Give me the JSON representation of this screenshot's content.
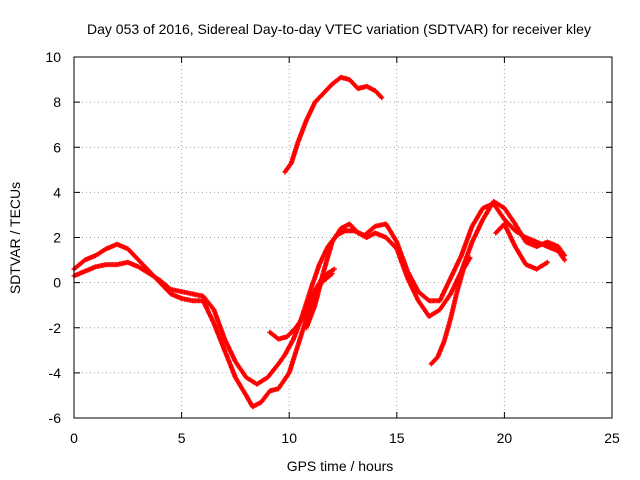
{
  "chart_data": {
    "type": "scatter",
    "title": "Day 053 of 2016, Sidereal Day-to-day VTEC variation (SDTVAR) for receiver kley",
    "xlabel": "GPS time / hours",
    "ylabel": "SDTVAR / TECUs",
    "xlim": [
      0,
      25
    ],
    "ylim": [
      -6,
      10
    ],
    "xticks": [
      "0",
      "5",
      "10",
      "15",
      "20",
      "25"
    ],
    "yticks": [
      "-6",
      "-4",
      "-2",
      "0",
      "2",
      "4",
      "6",
      "8",
      "10"
    ],
    "grid": true,
    "marker": "+",
    "color": "#ff0000",
    "series": [
      {
        "points": [
          [
            0,
            0.3
          ],
          [
            0.5,
            0.5
          ],
          [
            1,
            0.7
          ],
          [
            1.5,
            0.8
          ],
          [
            2,
            0.8
          ],
          [
            2.5,
            0.9
          ],
          [
            3,
            0.7
          ],
          [
            3.5,
            0.4
          ],
          [
            4,
            0.1
          ],
          [
            4.5,
            -0.3
          ],
          [
            5,
            -0.4
          ],
          [
            5.5,
            -0.5
          ],
          [
            6,
            -0.6
          ],
          [
            6.5,
            -1.2
          ],
          [
            7,
            -2.5
          ],
          [
            7.5,
            -3.5
          ],
          [
            8,
            -4.2
          ],
          [
            8.5,
            -4.5
          ],
          [
            9,
            -4.2
          ],
          [
            9.5,
            -3.6
          ],
          [
            9.8,
            -3.2
          ],
          [
            10.2,
            -2.5
          ],
          [
            10.6,
            -1.5
          ],
          [
            11,
            -0.3
          ],
          [
            11.4,
            0.8
          ],
          [
            11.8,
            1.6
          ],
          [
            12.2,
            2.1
          ],
          [
            12.6,
            2.3
          ],
          [
            13,
            2.3
          ],
          [
            13.5,
            2.1
          ],
          [
            14,
            2.5
          ],
          [
            14.5,
            2.6
          ],
          [
            15,
            1.8
          ],
          [
            15.5,
            0.5
          ],
          [
            16,
            -0.4
          ],
          [
            16.5,
            -0.8
          ],
          [
            17,
            -0.8
          ],
          [
            17.5,
            0.2
          ],
          [
            18,
            1.2
          ],
          [
            18.5,
            2.5
          ],
          [
            19,
            3.3
          ],
          [
            19.5,
            3.5
          ],
          [
            20,
            2.8
          ],
          [
            20.5,
            2.3
          ],
          [
            21,
            2.0
          ],
          [
            21.5,
            1.8
          ],
          [
            22,
            1.6
          ],
          [
            22.5,
            1.4
          ],
          [
            22.8,
            1.0
          ]
        ]
      },
      {
        "points": [
          [
            0,
            0.6
          ],
          [
            0.5,
            1.0
          ],
          [
            1,
            1.2
          ],
          [
            1.5,
            1.5
          ],
          [
            2,
            1.7
          ],
          [
            2.5,
            1.5
          ],
          [
            3,
            1.0
          ],
          [
            3.5,
            0.5
          ],
          [
            4,
            0.0
          ],
          [
            4.5,
            -0.5
          ],
          [
            5,
            -0.7
          ],
          [
            5.5,
            -0.8
          ],
          [
            6,
            -0.8
          ],
          [
            6.5,
            -1.8
          ],
          [
            7,
            -3.0
          ],
          [
            7.5,
            -4.2
          ],
          [
            8,
            -5.0
          ],
          [
            8.3,
            -5.5
          ],
          [
            8.7,
            -5.3
          ],
          [
            9.1,
            -4.8
          ],
          [
            9.5,
            -4.7
          ],
          [
            10,
            -4.0
          ],
          [
            10.5,
            -2.5
          ],
          [
            11,
            -1.0
          ],
          [
            11.5,
            0.0
          ],
          [
            12,
            0.4
          ]
        ]
      },
      {
        "points": [
          [
            10.8,
            -2.0
          ],
          [
            11.2,
            -1.0
          ],
          [
            11.6,
            0.5
          ],
          [
            12,
            1.8
          ],
          [
            12.4,
            2.4
          ],
          [
            12.8,
            2.6
          ],
          [
            13.2,
            2.2
          ],
          [
            13.6,
            2.0
          ],
          [
            14,
            2.2
          ],
          [
            14.5,
            2.0
          ],
          [
            15,
            1.5
          ],
          [
            15.5,
            0.2
          ],
          [
            16,
            -0.8
          ],
          [
            16.5,
            -1.5
          ],
          [
            17,
            -1.2
          ],
          [
            17.5,
            -0.5
          ],
          [
            18,
            0.5
          ],
          [
            18.5,
            1.8
          ],
          [
            19,
            2.8
          ],
          [
            19.5,
            3.6
          ],
          [
            20,
            3.3
          ],
          [
            20.5,
            2.6
          ],
          [
            21,
            1.8
          ],
          [
            21.5,
            1.6
          ],
          [
            22,
            1.8
          ],
          [
            22.5,
            1.6
          ],
          [
            22.8,
            1.2
          ]
        ]
      },
      {
        "points": [
          [
            9.8,
            4.9
          ],
          [
            10.1,
            5.3
          ],
          [
            10.4,
            6.2
          ],
          [
            10.8,
            7.2
          ],
          [
            11.2,
            8.0
          ],
          [
            11.6,
            8.4
          ],
          [
            12,
            8.8
          ],
          [
            12.4,
            9.1
          ],
          [
            12.8,
            9.0
          ],
          [
            13.2,
            8.6
          ],
          [
            13.6,
            8.7
          ],
          [
            14,
            8.5
          ],
          [
            14.3,
            8.2
          ]
        ]
      },
      {
        "points": [
          [
            9.1,
            -2.2
          ],
          [
            9.5,
            -2.5
          ],
          [
            9.9,
            -2.4
          ],
          [
            10.3,
            -2.0
          ],
          [
            10.7,
            -1.5
          ],
          [
            11.1,
            -0.5
          ],
          [
            11.6,
            0.3
          ],
          [
            12.1,
            0.6
          ]
        ]
      },
      {
        "points": [
          [
            16.6,
            -3.6
          ],
          [
            16.9,
            -3.3
          ],
          [
            17.2,
            -2.6
          ],
          [
            17.5,
            -1.6
          ],
          [
            17.8,
            -0.4
          ],
          [
            18.1,
            0.6
          ],
          [
            18.4,
            1.1
          ]
        ]
      },
      {
        "points": [
          [
            19.6,
            2.2
          ],
          [
            20,
            2.6
          ],
          [
            20.5,
            1.6
          ],
          [
            21,
            0.8
          ],
          [
            21.5,
            0.6
          ],
          [
            22,
            0.9
          ]
        ]
      }
    ]
  }
}
